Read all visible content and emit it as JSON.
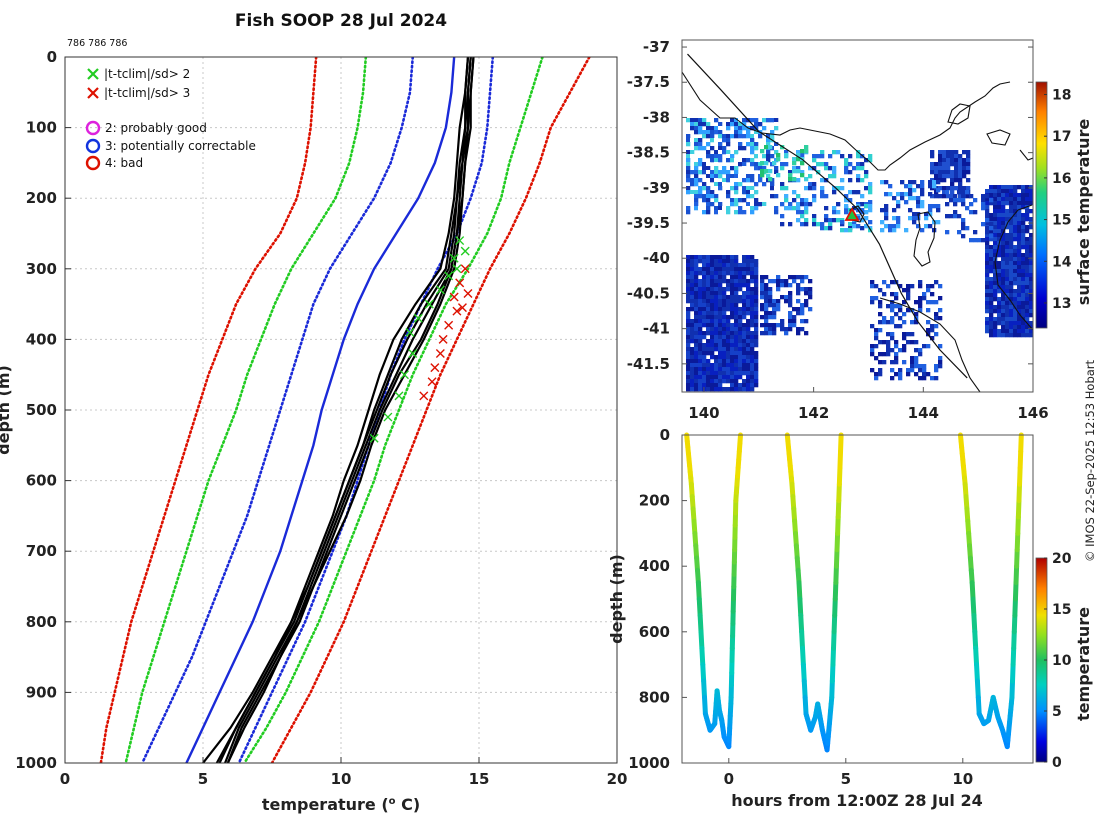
{
  "colors": {
    "gt2": "#22cc22",
    "gt3": "#dd1100",
    "probably_good": "#dd22dd",
    "potentially_correctable": "#1133dd",
    "bad": "#dd1100",
    "clim_mean": "#1a2ad8",
    "profile": "#000000",
    "grid": "#c8c8c8"
  },
  "chart_data": [
    {
      "type": "line",
      "id": "profiles",
      "title": "Fish SOOP 28 Jul 2024",
      "annotation": "786 786 786",
      "xlabel": "temperature (",
      "xlabel_sup": "o",
      "xlabel_end": " C)",
      "ylabel": "depth (m)",
      "xlim": [
        0,
        20
      ],
      "ylim": [
        1000,
        0
      ],
      "x_ticks": [
        0,
        5,
        10,
        15,
        20
      ],
      "y_ticks": [
        0,
        100,
        200,
        300,
        400,
        500,
        600,
        700,
        800,
        900,
        1000
      ],
      "grid": true,
      "legend": [
        {
          "marker": "x",
          "color": "#22cc22",
          "label": "|t-tclim|/sd> 2"
        },
        {
          "marker": "x",
          "color": "#dd1100",
          "label": "|t-tclim|/sd> 3"
        },
        {
          "marker": "o",
          "color": "#dd22dd",
          "label": "2: probably good"
        },
        {
          "marker": "o",
          "color": "#1133dd",
          "label": "3: potentially correctable"
        },
        {
          "marker": "o",
          "color": "#dd1100",
          "label": "4: bad"
        }
      ],
      "depth": [
        0,
        50,
        100,
        150,
        200,
        250,
        300,
        350,
        400,
        450,
        500,
        550,
        600,
        650,
        700,
        750,
        800,
        850,
        900,
        950,
        1000
      ],
      "climatology": [
        {
          "name": "clim mean",
          "style": "solid",
          "color": "#1a2ad8",
          "values": [
            14.1,
            14.0,
            13.8,
            13.4,
            12.8,
            12.0,
            11.2,
            10.6,
            10.1,
            9.7,
            9.3,
            9.0,
            8.6,
            8.2,
            7.8,
            7.3,
            6.8,
            6.2,
            5.6,
            5.0,
            4.4
          ]
        },
        {
          "name": "mean - 1sd",
          "style": "dotted",
          "color": "#1a2ad8",
          "values": [
            12.6,
            12.5,
            12.2,
            11.8,
            11.2,
            10.4,
            9.6,
            9.0,
            8.6,
            8.2,
            7.8,
            7.4,
            7.0,
            6.6,
            6.1,
            5.6,
            5.1,
            4.6,
            4.0,
            3.4,
            2.8
          ]
        },
        {
          "name": "mean - 2sd",
          "style": "dotted",
          "color": "#22cc22",
          "values": [
            10.9,
            10.8,
            10.6,
            10.3,
            9.8,
            9.0,
            8.2,
            7.6,
            7.1,
            6.6,
            6.2,
            5.7,
            5.2,
            4.8,
            4.4,
            4.0,
            3.6,
            3.2,
            2.8,
            2.5,
            2.2
          ]
        },
        {
          "name": "mean - 3sd",
          "style": "dotted",
          "color": "#dd1100",
          "values": [
            9.1,
            9.0,
            8.9,
            8.7,
            8.4,
            7.8,
            6.9,
            6.2,
            5.7,
            5.2,
            4.8,
            4.4,
            4.0,
            3.6,
            3.2,
            2.8,
            2.4,
            2.1,
            1.8,
            1.5,
            1.3
          ]
        },
        {
          "name": "mean + 1sd",
          "style": "dotted",
          "color": "#1a2ad8",
          "values": [
            15.5,
            15.4,
            15.3,
            15.1,
            14.7,
            14.2,
            13.5,
            12.9,
            12.3,
            11.8,
            11.4,
            11.0,
            10.6,
            10.2,
            9.7,
            9.2,
            8.7,
            8.1,
            7.5,
            6.9,
            6.3
          ]
        },
        {
          "name": "mean + 2sd",
          "style": "dotted",
          "color": "#22cc22",
          "values": [
            17.3,
            16.9,
            16.5,
            16.1,
            15.8,
            15.3,
            14.6,
            13.8,
            13.2,
            12.6,
            12.1,
            11.6,
            11.2,
            10.7,
            10.2,
            9.7,
            9.2,
            8.6,
            8.0,
            7.3,
            6.5
          ]
        },
        {
          "name": "mean + 3sd",
          "style": "dotted",
          "color": "#dd1100",
          "values": [
            19.0,
            18.3,
            17.6,
            17.2,
            16.7,
            16.1,
            15.4,
            14.8,
            14.2,
            13.6,
            13.1,
            12.6,
            12.1,
            11.6,
            11.1,
            10.6,
            10.1,
            9.5,
            8.9,
            8.2,
            7.5
          ]
        }
      ],
      "profiles": [
        {
          "name": "p1",
          "values": [
            14.7,
            14.6,
            14.5,
            14.4,
            14.3,
            14.2,
            14.0,
            13.3,
            12.6,
            12.0,
            11.4,
            10.9,
            10.4,
            9.9,
            9.4,
            8.9,
            8.4,
            7.8,
            7.1,
            6.4,
            5.9
          ]
        },
        {
          "name": "p2",
          "values": [
            14.8,
            14.7,
            14.7,
            14.5,
            14.4,
            14.3,
            14.1,
            13.6,
            13.0,
            12.3,
            11.6,
            11.1,
            10.7,
            10.2,
            9.6,
            9.0,
            8.4,
            7.7,
            7.0,
            6.3,
            5.8
          ]
        },
        {
          "name": "p3",
          "values": [
            14.6,
            14.5,
            14.3,
            14.2,
            14.1,
            13.9,
            13.6,
            12.7,
            11.9,
            11.4,
            11.0,
            10.6,
            10.1,
            9.7,
            9.2,
            8.7,
            8.2,
            7.6,
            6.9,
            6.2,
            5.6
          ]
        },
        {
          "name": "p4",
          "values": [
            14.7,
            14.6,
            14.6,
            14.4,
            14.2,
            14.0,
            13.8,
            12.9,
            12.2,
            11.7,
            11.2,
            10.8,
            10.3,
            9.8,
            9.3,
            8.8,
            8.3,
            7.6,
            6.9,
            6.2,
            5.5
          ]
        },
        {
          "name": "p5",
          "values": [
            14.8,
            14.7,
            14.6,
            14.5,
            14.4,
            14.2,
            14.0,
            13.5,
            12.9,
            12.1,
            11.5,
            11.0,
            10.5,
            10.0,
            9.5,
            9.0,
            8.5,
            7.8,
            7.2,
            6.5,
            5.9
          ]
        },
        {
          "name": "p6",
          "values": [
            14.6,
            14.5,
            14.5,
            14.3,
            14.2,
            14.1,
            13.9,
            13.1,
            12.4,
            11.8,
            11.3,
            10.8,
            10.3,
            9.8,
            9.3,
            8.8,
            8.2,
            7.5,
            6.8,
            6.0,
            5.0
          ]
        }
      ],
      "flags_gt2": [
        [
          14.3,
          260
        ],
        [
          14.1,
          285
        ],
        [
          13.9,
          310
        ],
        [
          13.6,
          330
        ],
        [
          13.2,
          350
        ],
        [
          12.8,
          370
        ],
        [
          12.5,
          390
        ],
        [
          12.6,
          420
        ],
        [
          12.3,
          450
        ],
        [
          12.1,
          480
        ],
        [
          11.7,
          510
        ],
        [
          11.2,
          540
        ],
        [
          14.5,
          275
        ],
        [
          14.2,
          300
        ]
      ],
      "flags_gt3": [
        [
          14.5,
          300
        ],
        [
          14.3,
          320
        ],
        [
          14.1,
          340
        ],
        [
          14.2,
          360
        ],
        [
          13.9,
          380
        ],
        [
          13.7,
          400
        ],
        [
          13.6,
          420
        ],
        [
          13.4,
          440
        ],
        [
          13.3,
          460
        ],
        [
          13.0,
          480
        ],
        [
          14.6,
          335
        ],
        [
          14.4,
          355
        ]
      ]
    },
    {
      "type": "heatmap",
      "id": "sst_map",
      "xlim": [
        139.6,
        146
      ],
      "ylim": [
        -41.9,
        -36.9
      ],
      "x_ticks": [
        140,
        142,
        144,
        146
      ],
      "y_ticks": [
        -37,
        -37.5,
        -38,
        -38.5,
        -39,
        -39.5,
        -40,
        -40.5,
        -41,
        -41.5
      ],
      "colorbar_label": "surface temperature",
      "colorbar_ticks": [
        13,
        14,
        15,
        16,
        17,
        18
      ],
      "colorbar_range": [
        12.4,
        18.3
      ],
      "marker": {
        "lon": 142.7,
        "lat": -39.4,
        "shape": "triangle"
      },
      "track": [
        [
          139.7,
          -37.1
        ],
        [
          140.3,
          -37.6
        ],
        [
          141.0,
          -38.2
        ],
        [
          141.8,
          -38.6
        ],
        [
          142.4,
          -39.0
        ],
        [
          142.8,
          -39.3
        ],
        [
          143.2,
          -39.8
        ],
        [
          143.6,
          -40.5
        ],
        [
          143.9,
          -40.9
        ],
        [
          144.3,
          -41.3
        ],
        [
          144.8,
          -41.7
        ]
      ]
    },
    {
      "type": "line",
      "id": "time_depth",
      "xlabel": "hours from 12:00Z 28 Jul 24",
      "ylabel": "depth (m)",
      "xlim": [
        -2,
        13
      ],
      "ylim": [
        1000,
        0
      ],
      "x_ticks": [
        0,
        5,
        10
      ],
      "y_ticks": [
        0,
        200,
        400,
        600,
        800,
        1000
      ],
      "colorbar_label": "temperature",
      "colorbar_ticks": [
        0,
        5,
        10,
        15,
        20
      ],
      "colorbar_range": [
        0,
        20
      ],
      "tracks": [
        {
          "hours": [
            -1.8,
            -1.6,
            -1.3,
            -1.0,
            -0.8,
            -0.6,
            -0.5,
            -0.4,
            -0.3,
            -0.2,
            0.0,
            0.1,
            0.2,
            0.3,
            0.5
          ],
          "depths": [
            0,
            150,
            450,
            850,
            900,
            880,
            780,
            840,
            870,
            920,
            950,
            800,
            500,
            200,
            0
          ]
        },
        {
          "hours": [
            2.5,
            2.7,
            3.0,
            3.3,
            3.5,
            3.7,
            3.8,
            3.9,
            4.0,
            4.2,
            4.4,
            4.6,
            4.8
          ],
          "depths": [
            0,
            150,
            450,
            850,
            900,
            860,
            820,
            860,
            900,
            960,
            800,
            400,
            0
          ]
        },
        {
          "hours": [
            9.9,
            10.1,
            10.4,
            10.7,
            10.9,
            11.1,
            11.3,
            11.5,
            11.7,
            11.9,
            12.1,
            12.3,
            12.5
          ],
          "depths": [
            0,
            150,
            450,
            850,
            880,
            870,
            800,
            860,
            900,
            950,
            800,
            400,
            0
          ]
        }
      ]
    }
  ],
  "credit": "© IMOS 22-Sep-2025 12:53 Hobart"
}
